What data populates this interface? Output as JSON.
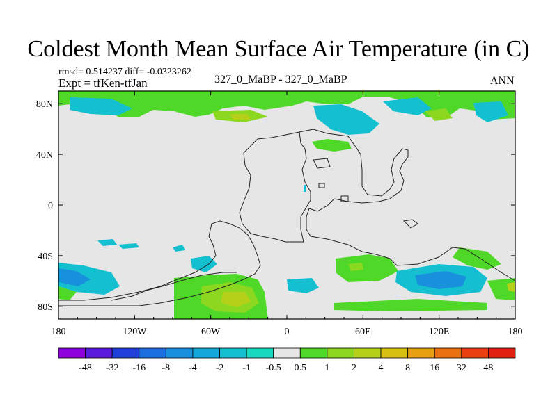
{
  "title": "Coldest Month Mean Surface Air Temperature (in C)",
  "stats": "rmsd= 0.514237 diff= -0.0323262",
  "experiment": "Expt = tfKen-tfJan",
  "case_label": "327_0_MaBP - 327_0_MaBP",
  "season": "ANN",
  "map": {
    "x_tick_labels": [
      "180",
      "120W",
      "60W",
      "0",
      "60E",
      "120E",
      "180"
    ],
    "y_tick_labels": [
      "80N",
      "40N",
      "0",
      "40S",
      "80S"
    ],
    "background_color": "#e6e6e6"
  },
  "colorbar": {
    "labels": [
      "-48",
      "-32",
      "-16",
      "-8",
      "-4",
      "-2",
      "-1",
      "-0.5",
      "0.5",
      "1",
      "2",
      "4",
      "8",
      "16",
      "32",
      "48"
    ],
    "colors": [
      "#8c00d9",
      "#5a1ad9",
      "#1f3fd9",
      "#1c6fe0",
      "#1890dc",
      "#14a8dc",
      "#14c0d0",
      "#18d8c0",
      "#e6e6e6",
      "#50d828",
      "#8cd820",
      "#b4d018",
      "#d8c010",
      "#e8a010",
      "#ea7010",
      "#ea4010",
      "#e02010"
    ]
  }
}
